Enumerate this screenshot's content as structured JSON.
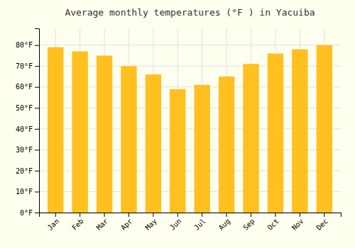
{
  "chart_data": {
    "type": "bar",
    "title": "Average monthly temperatures (°F ) in Yacuiba",
    "categories": [
      "Jan",
      "Feb",
      "Mar",
      "Apr",
      "May",
      "Jun",
      "Jul",
      "Aug",
      "Sep",
      "Oct",
      "Nov",
      "Dec"
    ],
    "values": [
      79,
      77,
      75,
      70,
      66,
      59,
      61,
      65,
      71,
      76,
      78,
      80
    ],
    "color": "#FFC020",
    "ylim": [
      0,
      88
    ],
    "yticks": [
      {
        "value": 0,
        "label": "0°F"
      },
      {
        "value": 10,
        "label": "10°F"
      },
      {
        "value": 20,
        "label": "20°F"
      },
      {
        "value": 30,
        "label": "30°F"
      },
      {
        "value": 40,
        "label": "40°F"
      },
      {
        "value": 50,
        "label": "50°F"
      },
      {
        "value": 60,
        "label": "60°F"
      },
      {
        "value": 70,
        "label": "70°F"
      },
      {
        "value": 80,
        "label": "80°F"
      }
    ],
    "grid": true
  }
}
